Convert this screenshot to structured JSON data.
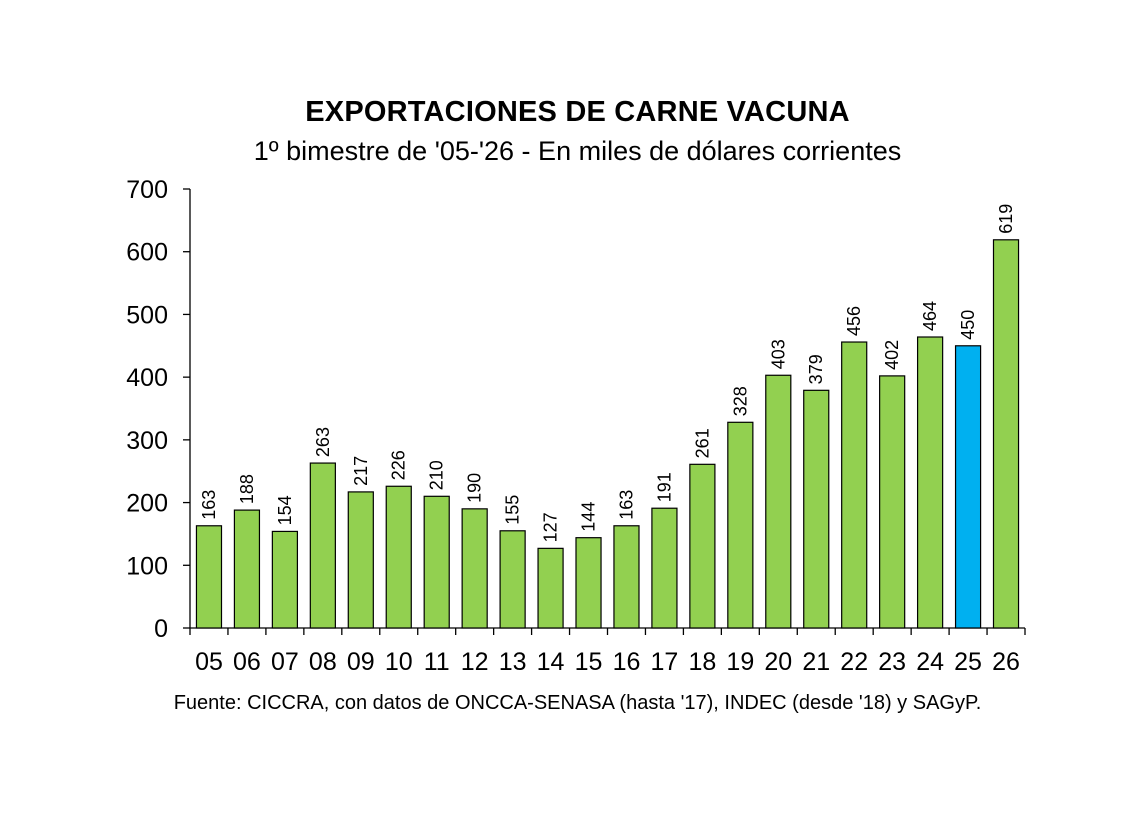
{
  "chart_data": {
    "type": "bar",
    "title": "EXPORTACIONES DE CARNE VACUNA",
    "subtitle": "1º bimestre de '05-'26 - En miles de dólares corrientes",
    "source": "Fuente: CICCRA, con datos de ONCCA-SENASA (hasta '17), INDEC (desde '18) y SAGyP.",
    "categories": [
      "05",
      "06",
      "07",
      "08",
      "09",
      "10",
      "11",
      "12",
      "13",
      "14",
      "15",
      "16",
      "17",
      "18",
      "19",
      "20",
      "21",
      "22",
      "23",
      "24",
      "25",
      "26"
    ],
    "values": [
      163,
      188,
      154,
      263,
      217,
      226,
      210,
      190,
      155,
      127,
      144,
      163,
      191,
      261,
      328,
      403,
      379,
      456,
      402,
      464,
      450,
      619
    ],
    "highlight_index": 20,
    "ylim": [
      0,
      700
    ],
    "yticks": [
      0,
      100,
      200,
      300,
      400,
      500,
      600,
      700
    ],
    "xlabel": "",
    "ylabel": "",
    "grid": false,
    "colors": {
      "bar": "#92d050",
      "highlight": "#00b0f0",
      "outline": "#000000"
    }
  }
}
